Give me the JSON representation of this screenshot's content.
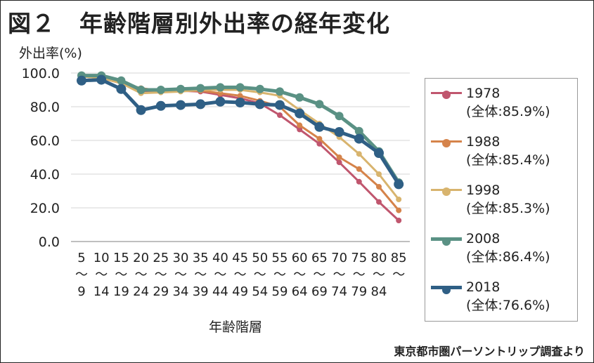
{
  "title": "図２　年齢階層別外出率の経年変化",
  "source": "東京都市圏パーソントリップ調査より",
  "chart_data": {
    "type": "line",
    "title": "年齢階層別外出率の経年変化",
    "ylabel": "外出率(%)",
    "xlabel": "年齢階層",
    "ylim": [
      0,
      100
    ],
    "yticks": [
      "0.0",
      "20.0",
      "40.0",
      "60.0",
      "80.0",
      "100.0"
    ],
    "grid": true,
    "legend_position": "right",
    "categories": [
      [
        "5",
        "〜",
        "9"
      ],
      [
        "10",
        "〜",
        "14"
      ],
      [
        "15",
        "〜",
        "19"
      ],
      [
        "20",
        "〜",
        "24"
      ],
      [
        "25",
        "〜",
        "29"
      ],
      [
        "30",
        "〜",
        "34"
      ],
      [
        "35",
        "〜",
        "39"
      ],
      [
        "40",
        "〜",
        "44"
      ],
      [
        "45",
        "〜",
        "49"
      ],
      [
        "50",
        "〜",
        "54"
      ],
      [
        "55",
        "〜",
        "59"
      ],
      [
        "60",
        "〜",
        "64"
      ],
      [
        "65",
        "〜",
        "69"
      ],
      [
        "70",
        "〜",
        "74"
      ],
      [
        "75",
        "〜",
        "79"
      ],
      [
        "80",
        "〜",
        "84"
      ],
      [
        "85",
        "〜",
        ""
      ]
    ],
    "series": [
      {
        "name": "1978",
        "overall": "(全体:85.9%)",
        "color": "#c0566e",
        "width": 3,
        "r": 4,
        "values": [
          98,
          97,
          94,
          89,
          89,
          89.5,
          89,
          87,
          85,
          82,
          75,
          66.5,
          58,
          47,
          35.5,
          23.5,
          12.5
        ]
      },
      {
        "name": "1988",
        "overall": "(全体:85.4%)",
        "color": "#d5834a",
        "width": 3,
        "r": 4,
        "values": [
          98,
          97,
          94,
          91,
          89.5,
          89.5,
          89.5,
          88,
          86.5,
          83.5,
          80,
          69,
          61,
          50,
          43,
          32.5,
          18.5
        ]
      },
      {
        "name": "1998",
        "overall": "(全体:85.3%)",
        "color": "#d8b46e",
        "width": 3,
        "r": 4,
        "values": [
          98,
          97,
          94,
          88,
          88.5,
          89,
          90,
          90,
          90,
          88.5,
          86.5,
          78,
          70,
          62,
          52,
          40,
          25
        ]
      },
      {
        "name": "2008",
        "overall": "(全体:86.4%)",
        "color": "#5a9184",
        "width": 5,
        "r": 6,
        "values": [
          98.5,
          98.5,
          95.5,
          90,
          90,
          90.5,
          91,
          91.5,
          91.5,
          90.5,
          89,
          85.5,
          81.5,
          74.5,
          65.5,
          53.5,
          35
        ]
      },
      {
        "name": "2018",
        "overall": "(全体:76.6%)",
        "color": "#2f5f85",
        "width": 5,
        "r": 7,
        "values": [
          95.5,
          96,
          90.5,
          78,
          80.5,
          81,
          81.5,
          83,
          82.5,
          81.5,
          81,
          76,
          68,
          65,
          61,
          52.5,
          34
        ]
      }
    ]
  }
}
